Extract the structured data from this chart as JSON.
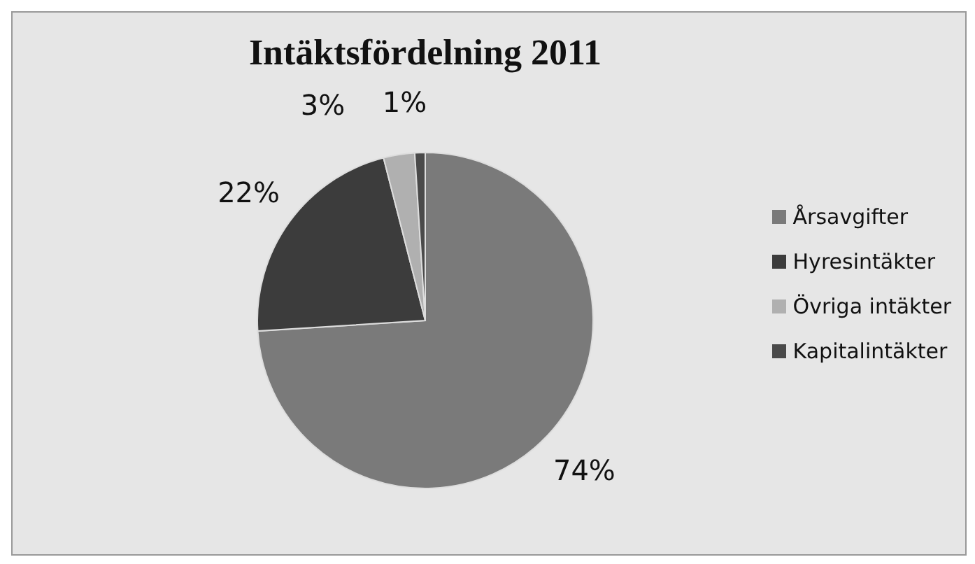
{
  "chart_data": {
    "type": "pie",
    "title": "Intäktsfördelning 2011",
    "categories": [
      "Årsavgifter",
      "Hyresintäkter",
      "Övriga intäkter",
      "Kapitalintäkter"
    ],
    "values": [
      74,
      22,
      3,
      1
    ],
    "colors": [
      "#7a7a7a",
      "#3c3c3c",
      "#b0b0b0",
      "#4a4a4a"
    ],
    "value_labels": [
      "74%",
      "22%",
      "3%",
      "1%"
    ],
    "legend": "right"
  }
}
